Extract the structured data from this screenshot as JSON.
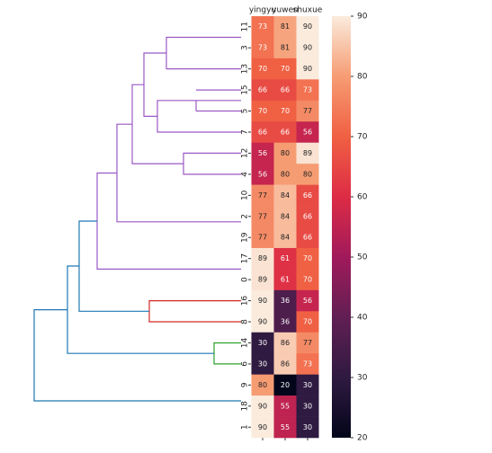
{
  "chart_data": {
    "type": "clustermap",
    "columns": [
      "yingyu",
      "yuwen",
      "shuxue"
    ],
    "rows": [
      "11",
      "3",
      "13",
      "15",
      "5",
      "7",
      "12",
      "4",
      "10",
      "2",
      "19",
      "17",
      "0",
      "16",
      "8",
      "14",
      "6",
      "9",
      "18",
      "1"
    ],
    "values": [
      [
        73,
        81,
        90
      ],
      [
        73,
        81,
        90
      ],
      [
        70,
        70,
        90
      ],
      [
        66,
        66,
        73
      ],
      [
        70,
        70,
        77
      ],
      [
        66,
        66,
        56
      ],
      [
        56,
        80,
        89
      ],
      [
        56,
        80,
        80
      ],
      [
        77,
        84,
        66
      ],
      [
        77,
        84,
        66
      ],
      [
        77,
        84,
        66
      ],
      [
        89,
        61,
        70
      ],
      [
        89,
        61,
        70
      ],
      [
        90,
        36,
        56
      ],
      [
        90,
        36,
        70
      ],
      [
        30,
        86,
        77
      ],
      [
        30,
        86,
        73
      ],
      [
        80,
        20,
        30
      ],
      [
        90,
        55,
        30
      ],
      [
        90,
        55,
        30
      ]
    ],
    "clim": [
      20,
      90
    ],
    "cticks": [
      20,
      30,
      40,
      50,
      60,
      70,
      80,
      90
    ],
    "colors": [
      "#03051a",
      "#2f1a41",
      "#611f53",
      "#a11a5b",
      "#dd2c45",
      "#f06043",
      "#f69c73",
      "#faebdd"
    ]
  }
}
